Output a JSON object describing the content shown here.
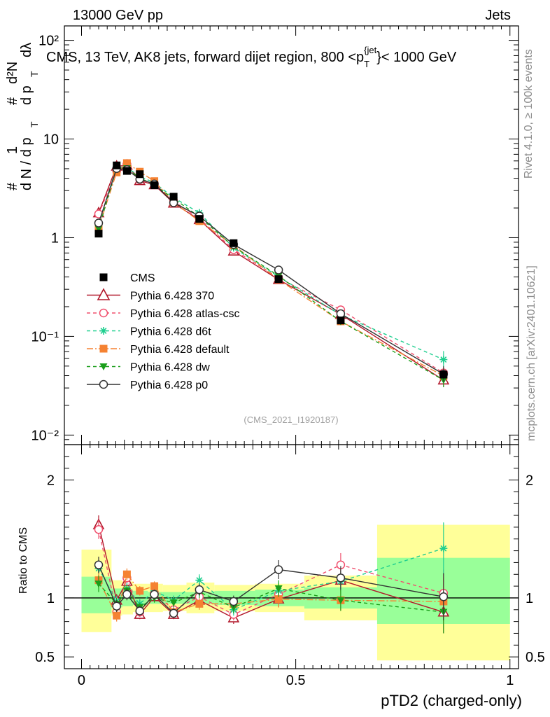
{
  "header": {
    "left": "13000 GeV pp",
    "right": "Jets"
  },
  "side_labels": {
    "rivet": "Rivet 4.1.0, ≥ 100k events",
    "site": "mcplots.cern.ch [arXiv:2401.10621]"
  },
  "chart_data": {
    "type": "line",
    "title": "CMS, 13 TeV, AK8 jets, forward dijet region, 800 <p_T^{jet}< 1000 GeV",
    "title_parts": {
      "main": "CMS, 13 TeV, AK8 jets, forward dijet region, 800 <p",
      "sub": "T",
      "sup": "{jet",
      "tail": "}< 1000 GeV"
    },
    "watermark": "(CMS_2021_I1920187)",
    "xlabel": "pTD2 (charged-only)",
    "ylabel_top": "1 / dN/dp_T  d²N / dp_T dλ",
    "ylabel_parts": {
      "hash": "#",
      "one": "1",
      "dN": "d N / d p",
      "T": "T",
      "d2N": "d²N",
      "dpT": "d p",
      "dl": "dλ"
    },
    "ylabel_ratio": "Ratio to CMS",
    "x": [
      0.04,
      0.082,
      0.106,
      0.136,
      0.17,
      0.215,
      0.275,
      0.355,
      0.46,
      0.605,
      0.845
    ],
    "x_edges": [
      0.0,
      0.07,
      0.095,
      0.12,
      0.155,
      0.19,
      0.245,
      0.31,
      0.405,
      0.52,
      0.69,
      1.0
    ],
    "xlim": [
      -0.04,
      1.02
    ],
    "ylim_main": [
      0.008,
      140
    ],
    "ylim_ratio": [
      0.4,
      2.3
    ],
    "x_ticks": [
      "0",
      "0.5",
      "1"
    ],
    "y_ticks_main": [
      "10⁻²",
      "10⁻¹",
      "1",
      "10",
      "10²"
    ],
    "y_ticks_ratio": [
      "0.5",
      "1",
      "2"
    ],
    "reference": {
      "name": "CMS",
      "values": [
        1.1,
        5.4,
        4.75,
        4.4,
        3.4,
        2.6,
        1.55,
        0.88,
        0.38,
        0.145,
        0.041
      ],
      "band_inner": [
        [
          0.87,
          1.18
        ],
        [
          0.92,
          1.08
        ],
        [
          0.93,
          1.07
        ],
        [
          0.94,
          1.06
        ],
        [
          0.95,
          1.05
        ],
        [
          0.95,
          1.05
        ],
        [
          0.95,
          1.05
        ],
        [
          0.94,
          1.06
        ],
        [
          0.93,
          1.07
        ],
        [
          0.91,
          1.09
        ],
        [
          0.78,
          1.34
        ]
      ],
      "band_outer": [
        [
          0.71,
          1.41
        ],
        [
          0.85,
          1.15
        ],
        [
          0.86,
          1.14
        ],
        [
          0.88,
          1.12
        ],
        [
          0.88,
          1.12
        ],
        [
          0.89,
          1.11
        ],
        [
          0.87,
          1.13
        ],
        [
          0.89,
          1.11
        ],
        [
          0.88,
          1.12
        ],
        [
          0.81,
          1.19
        ],
        [
          0.47,
          1.62
        ]
      ]
    },
    "series": [
      {
        "name": "Pythia 6.428 370",
        "color": "#b2182b",
        "dash": "",
        "marker": "triangle-open",
        "ratio": [
          1.62,
          0.98,
          1.14,
          0.86,
          1.01,
          0.86,
          0.98,
          0.83,
          0.99,
          1.15,
          0.88
        ],
        "err": [
          0.08,
          0.05,
          0.05,
          0.04,
          0.04,
          0.04,
          0.05,
          0.05,
          0.07,
          0.09,
          0.18
        ]
      },
      {
        "name": "Pythia 6.428 atlas-csc",
        "color": "#f0506e",
        "dash": "5,4",
        "marker": "circle-open",
        "ratio": [
          1.58,
          0.88,
          1.17,
          0.88,
          1.04,
          0.9,
          1.01,
          0.86,
          1.03,
          1.28,
          1.04
        ],
        "err": [
          0.08,
          0.05,
          0.05,
          0.04,
          0.04,
          0.04,
          0.05,
          0.05,
          0.07,
          0.1,
          0.2
        ]
      },
      {
        "name": "Pythia 6.428 d6t",
        "color": "#1fcf8f",
        "dash": "5,4",
        "marker": "asterisk",
        "ratio": [
          1.25,
          0.97,
          1.08,
          0.95,
          1.06,
          0.98,
          1.15,
          0.9,
          1.06,
          1.14,
          1.42
        ],
        "err": [
          0.07,
          0.05,
          0.05,
          0.04,
          0.04,
          0.04,
          0.05,
          0.05,
          0.07,
          0.09,
          0.22
        ]
      },
      {
        "name": "Pythia 6.428 default",
        "color": "#f58232",
        "dash": "9,3,2,3",
        "marker": "square",
        "ratio": [
          1.15,
          0.85,
          1.2,
          1.06,
          1.1,
          0.88,
          0.95,
          0.95,
          0.99,
          0.98,
          0.97
        ],
        "err": [
          0.07,
          0.05,
          0.05,
          0.04,
          0.04,
          0.04,
          0.05,
          0.05,
          0.07,
          0.09,
          0.2
        ]
      },
      {
        "name": "Pythia 6.428 dw",
        "color": "#1a9e1a",
        "dash": "5,4",
        "marker": "triangle-down",
        "ratio": [
          1.12,
          0.95,
          1.06,
          0.92,
          1.0,
          0.96,
          1.05,
          0.92,
          1.08,
          0.98,
          0.88
        ],
        "err": [
          0.07,
          0.05,
          0.05,
          0.04,
          0.04,
          0.04,
          0.05,
          0.05,
          0.07,
          0.09,
          0.18
        ]
      },
      {
        "name": "Pythia 6.428 p0",
        "color": "#333333",
        "dash": "",
        "marker": "circle-open",
        "ratio": [
          1.28,
          0.93,
          1.03,
          0.89,
          1.03,
          0.87,
          1.07,
          0.97,
          1.24,
          1.17,
          1.01
        ],
        "err": [
          0.07,
          0.05,
          0.05,
          0.04,
          0.04,
          0.04,
          0.05,
          0.05,
          0.08,
          0.1,
          0.2
        ]
      }
    ]
  }
}
